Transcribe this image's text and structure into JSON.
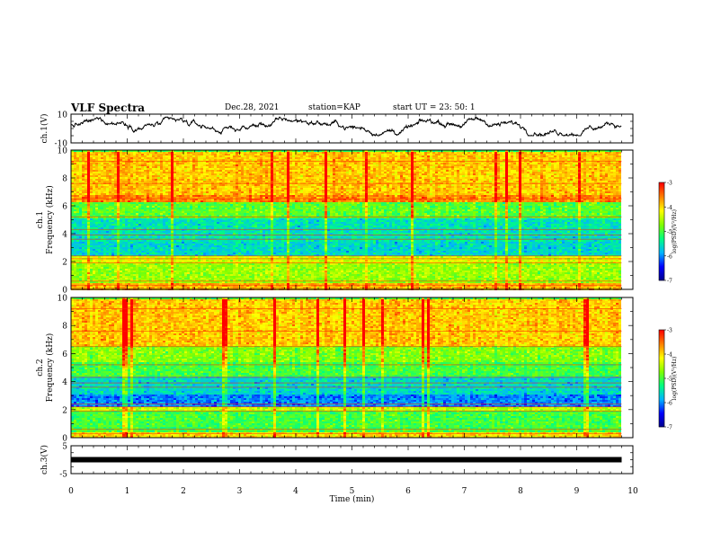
{
  "header": {
    "title": "VLF Spectra",
    "date": "Dec.28, 2021",
    "station": "station=KAP",
    "start": "start  UT =   23: 50: 1"
  },
  "chart_data": [
    {
      "type": "line",
      "panel": "ch.1 waveform",
      "ylabel": "ch.1(V)",
      "ylim": [
        -10,
        10
      ],
      "yticks": [
        -10,
        10
      ],
      "xlim": [
        0,
        10
      ],
      "x_end": 9.8,
      "description_values": {
        "typical_range": [
          -5,
          8
        ]
      }
    },
    {
      "type": "heatmap",
      "panel": "ch.1 spectrogram",
      "ylabel": "ch.1",
      "ylabel2": "Frequency (kHz)",
      "ylim": [
        0,
        10
      ],
      "yticks": [
        0,
        2,
        4,
        6,
        8,
        10
      ],
      "xlim": [
        0,
        10
      ],
      "x_end": 9.8,
      "colorbar": {
        "label": "log(PSD)(V²/Hz)",
        "range": [
          -7,
          -3
        ],
        "ticks": [
          -3,
          -4,
          -5,
          -6,
          -7
        ]
      },
      "bands_kHz_level": [
        [
          0,
          0.5,
          -3.8
        ],
        [
          0.5,
          2.0,
          -4.6
        ],
        [
          2.0,
          2.4,
          -4.3
        ],
        [
          2.4,
          3.5,
          -5.6
        ],
        [
          3.5,
          5.2,
          -5.5
        ],
        [
          5.2,
          6.3,
          -4.9
        ],
        [
          6.3,
          6.8,
          -3.6
        ],
        [
          6.8,
          10,
          -3.9
        ]
      ]
    },
    {
      "type": "heatmap",
      "panel": "ch.2 spectrogram",
      "ylabel": "ch.2",
      "ylabel2": "Frequency (kHz)",
      "ylim": [
        0,
        10
      ],
      "yticks": [
        0,
        2,
        4,
        6,
        8,
        10
      ],
      "xlim": [
        0,
        10
      ],
      "x_end": 9.8,
      "colorbar": {
        "label": "log(PSD)(V²/Hz)",
        "range": [
          -7,
          -3
        ],
        "ticks": [
          -3,
          -4,
          -5,
          -6,
          -7
        ]
      },
      "bands_kHz_level": [
        [
          0,
          0.5,
          -4.0
        ],
        [
          0.5,
          2.0,
          -5.0
        ],
        [
          2.0,
          2.3,
          -4.4
        ],
        [
          2.3,
          3.2,
          -6.0
        ],
        [
          3.2,
          4.4,
          -5.6
        ],
        [
          4.4,
          5.5,
          -5.0
        ],
        [
          5.5,
          6.6,
          -4.7
        ],
        [
          6.6,
          10,
          -3.9
        ]
      ]
    },
    {
      "type": "line",
      "panel": "ch.3 signal",
      "ylabel": "ch.3(V)",
      "ylim": [
        -5,
        5
      ],
      "yticks": [
        -5,
        5
      ],
      "xlim": [
        0,
        10
      ],
      "x_end": 9.8,
      "values": {
        "constant": 0
      }
    }
  ],
  "xaxis": {
    "label": "Time  (min)",
    "ticks": [
      0,
      1,
      2,
      3,
      4,
      5,
      6,
      7,
      8,
      9,
      10
    ]
  },
  "colors": {
    "trace": "#000000",
    "colormap": [
      "#00008a",
      "#0000ff",
      "#00b4ff",
      "#00ff80",
      "#80ff00",
      "#ffff00",
      "#ff8000",
      "#ff0000",
      "#ffffff"
    ]
  }
}
